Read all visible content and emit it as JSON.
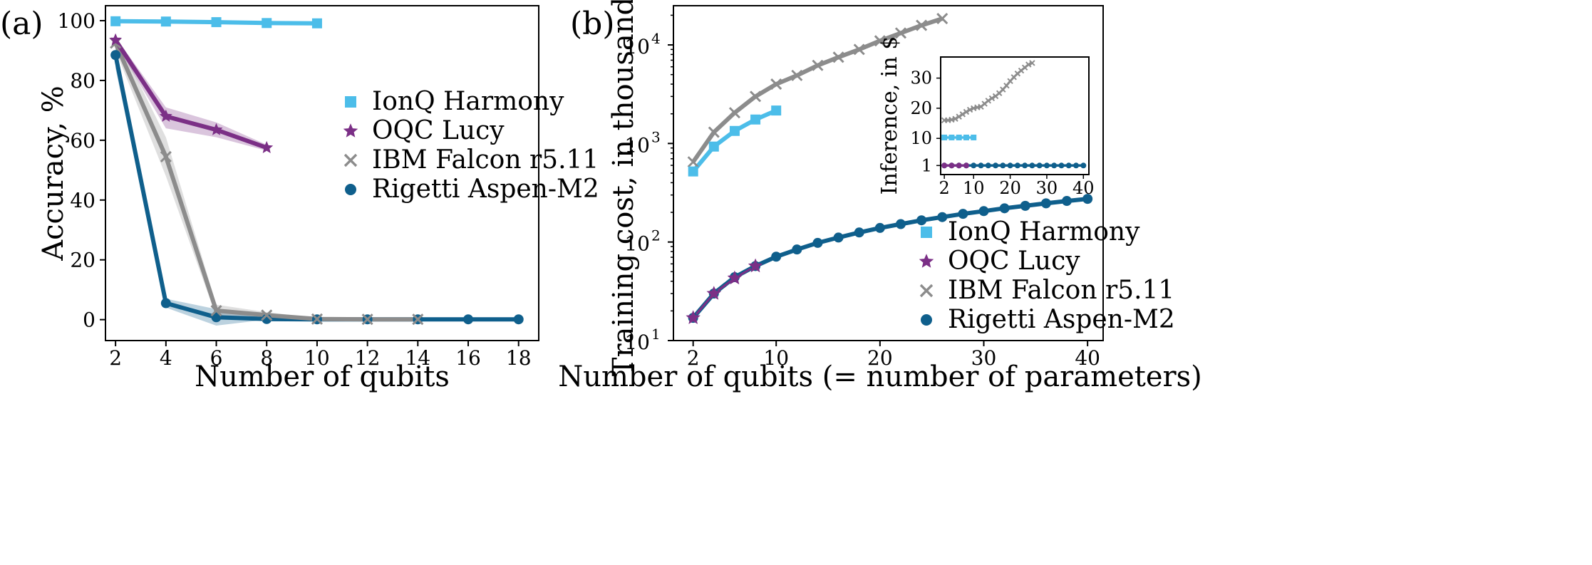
{
  "colors": {
    "ionq": "#4cbde9",
    "oqc": "#7b2f86",
    "ibm": "#8c8c8c",
    "rigetti": "#0f5f8c"
  },
  "chart_data": [
    {
      "panel": "(a)",
      "type": "line",
      "xlabel": "Number of qubits",
      "ylabel": "Accuracy, %",
      "xlim": [
        1.6,
        18.8
      ],
      "ylim": [
        -7,
        105
      ],
      "xticks": [
        2,
        4,
        6,
        8,
        10,
        12,
        14,
        16,
        18
      ],
      "yticks": [
        0,
        20,
        40,
        60,
        80,
        100
      ],
      "legend_position": "center-right",
      "grid": false,
      "series": [
        {
          "key": "ionq",
          "name": "IonQ Harmony",
          "marker": "square",
          "x": [
            2,
            4,
            6,
            8,
            10
          ],
          "y": [
            99.8,
            99.7,
            99.5,
            99.2,
            99.1
          ]
        },
        {
          "key": "oqc",
          "name": "OQC Lucy",
          "marker": "star",
          "x": [
            2,
            4,
            6,
            8
          ],
          "y": [
            93.5,
            68,
            63.5,
            57.5
          ],
          "band_low": [
            92.5,
            64,
            61,
            56.5
          ],
          "band_high": [
            94.5,
            71,
            66,
            58.5
          ]
        },
        {
          "key": "ibm",
          "name": "IBM Falcon r5.11",
          "marker": "x",
          "x": [
            2,
            4,
            6,
            8,
            10,
            12,
            14
          ],
          "y": [
            92.5,
            54.5,
            3,
            1.5,
            0.2,
            0.1,
            0.1
          ],
          "band_low": [
            90,
            48,
            1,
            0.5,
            0,
            0,
            0
          ],
          "band_high": [
            95,
            61,
            5,
            2.5,
            0.5,
            0.3,
            0.3
          ]
        },
        {
          "key": "rigetti",
          "name": "Rigetti Aspen-M2",
          "marker": "circle",
          "x": [
            2,
            4,
            6,
            8,
            10,
            12,
            14,
            16,
            18
          ],
          "y": [
            88.5,
            5.5,
            0.8,
            0.2,
            0.1,
            0.1,
            0.1,
            0.1,
            0.1
          ],
          "band_low": [
            84,
            4,
            -2,
            0,
            0,
            0,
            0,
            0,
            0
          ],
          "band_high": [
            92,
            7,
            3.5,
            0.5,
            0.3,
            0.3,
            0.3,
            0.3,
            0.3
          ]
        }
      ]
    },
    {
      "panel": "(b)",
      "type": "line",
      "yscale": "log",
      "xlabel": "Number of qubits (= number of parameters)",
      "ylabel": "Training cost, in thousand $",
      "xlim": [
        0.1,
        41.5
      ],
      "ylim": [
        10,
        25000
      ],
      "xticks": [
        2,
        10,
        20,
        30,
        40
      ],
      "ytick_values": [
        10,
        100,
        1000,
        10000
      ],
      "ytick_labels": [
        "10",
        "10",
        "10",
        "10"
      ],
      "ytick_exponents": [
        "1",
        "2",
        "3",
        "4"
      ],
      "legend_position": "lower-right",
      "grid": false,
      "series": [
        {
          "key": "ionq",
          "name": "IonQ Harmony",
          "marker": "square",
          "x": [
            2,
            4,
            6,
            8,
            10
          ],
          "y": [
            520,
            930,
            1340,
            1750,
            2160
          ]
        },
        {
          "key": "oqc",
          "name": "OQC Lucy",
          "marker": "star",
          "x": [
            2,
            4,
            6,
            8
          ],
          "y": [
            17,
            30,
            43,
            57
          ]
        },
        {
          "key": "ibm",
          "name": "IBM Falcon r5.11",
          "marker": "x",
          "x": [
            2,
            4,
            6,
            8,
            10,
            12,
            14,
            16,
            18,
            20,
            22,
            24,
            26
          ],
          "y": [
            650,
            1300,
            2050,
            3000,
            4000,
            4900,
            6200,
            7500,
            9000,
            11000,
            13200,
            15800,
            18500
          ]
        },
        {
          "key": "rigetti",
          "name": "Rigetti Aspen-M2",
          "marker": "circle",
          "x": [
            2,
            4,
            6,
            8,
            10,
            12,
            14,
            16,
            18,
            20,
            22,
            24,
            26,
            28,
            30,
            32,
            34,
            36,
            38,
            40
          ],
          "y": [
            17,
            30,
            44,
            57,
            71,
            84,
            98,
            111,
            125,
            139,
            152,
            166,
            179,
            193,
            206,
            220,
            233,
            247,
            261,
            274
          ]
        }
      ]
    },
    {
      "panel": "(b) inset",
      "type": "line",
      "ylabel": "Inference, in $",
      "xlim": [
        1,
        41.5
      ],
      "ylim": [
        -2,
        37
      ],
      "xticks": [
        2,
        10,
        20,
        30,
        40
      ],
      "yticks": [
        1,
        10,
        20,
        30
      ],
      "series": [
        {
          "key": "ionq",
          "name": "IonQ Harmony",
          "marker": "square",
          "x": [
            2,
            4,
            6,
            8,
            10
          ],
          "y": [
            10.3,
            10.3,
            10.3,
            10.3,
            10.3
          ]
        },
        {
          "key": "ibm",
          "name": "IBM Falcon r5.11",
          "marker": "x",
          "x": [
            2,
            3,
            4,
            5,
            6,
            7,
            8,
            9,
            10,
            11,
            12,
            13,
            14,
            15,
            16,
            17,
            18,
            19,
            20,
            21,
            22,
            23,
            24,
            25,
            26
          ],
          "y": [
            16,
            16,
            16.2,
            16.5,
            17.2,
            18,
            18.8,
            19.5,
            20,
            20.3,
            20.5,
            21.5,
            22.5,
            23.3,
            24,
            25,
            26.2,
            27.5,
            29,
            30.3,
            31.5,
            32.5,
            33.5,
            34.5,
            35
          ]
        },
        {
          "key": "oqc",
          "name": "OQC Lucy",
          "marker": "circle-small",
          "x": [
            2,
            4,
            6,
            8
          ],
          "y": [
            1,
            1,
            1,
            1
          ]
        },
        {
          "key": "rigetti",
          "name": "Rigetti Aspen-M2",
          "marker": "circle-small",
          "x": [
            2,
            4,
            6,
            8,
            10,
            12,
            14,
            16,
            18,
            20,
            22,
            24,
            26,
            28,
            30,
            32,
            34,
            36,
            38,
            40
          ],
          "y": [
            1,
            1,
            1,
            1,
            1,
            1,
            1,
            1,
            1,
            1,
            1,
            1,
            1,
            1,
            1,
            1,
            1,
            1,
            1,
            1
          ]
        }
      ]
    }
  ]
}
